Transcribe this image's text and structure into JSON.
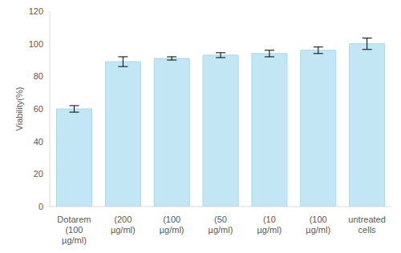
{
  "chart_data": {
    "type": "bar",
    "y_label": "Viability(%)",
    "categories": [
      "Dotarem (100 µg/ml)",
      "(200 µg/ml)",
      "(100 µg/ml)",
      "(50 µg/ml)",
      "(10 µg/ml)",
      "(100 µg/ml)",
      "untreated cells"
    ],
    "values": [
      60,
      89,
      91,
      93,
      94,
      96,
      100
    ],
    "errors": [
      2,
      3,
      1,
      1.5,
      2,
      2,
      3.5
    ],
    "color": "#c3e6f5",
    "ylim": [
      0,
      120
    ],
    "yticks": [
      0,
      20,
      40,
      60,
      80,
      100,
      120
    ],
    "grid": false
  }
}
